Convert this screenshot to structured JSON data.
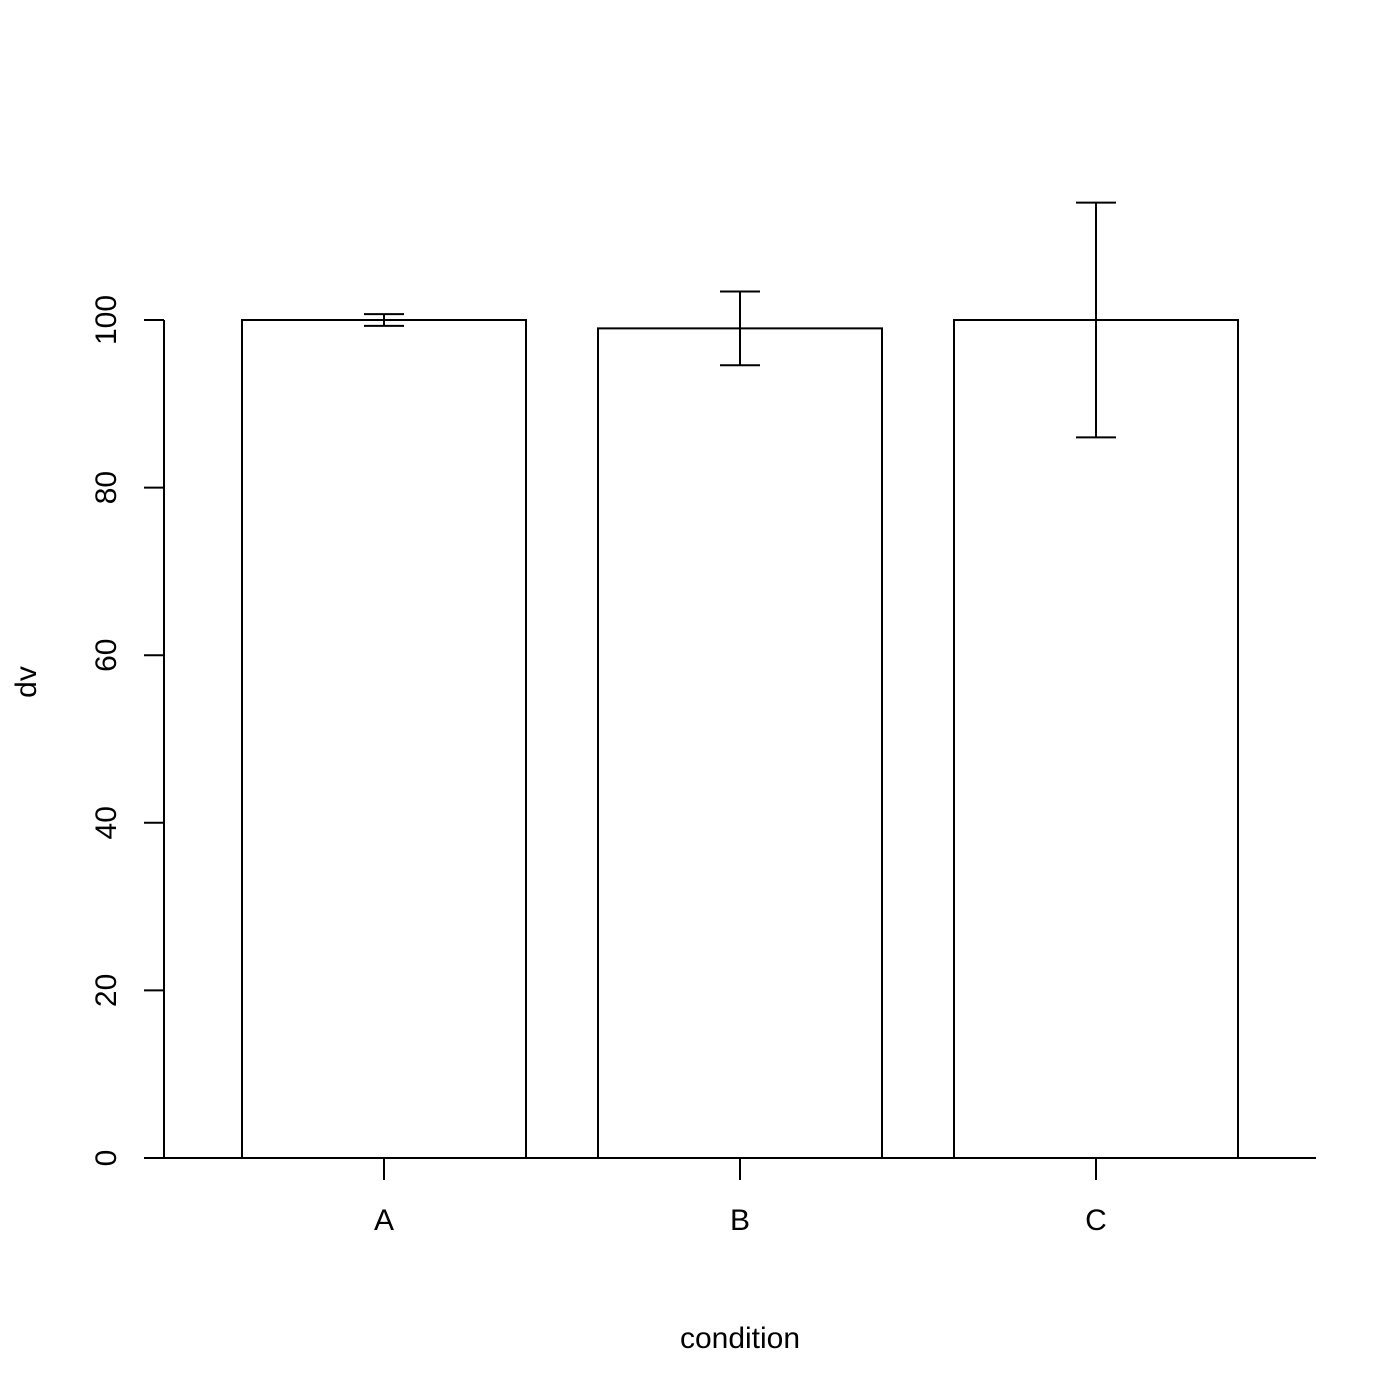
{
  "chart_data": {
    "type": "bar",
    "title": "",
    "xlabel": "condition",
    "ylabel": "dv",
    "categories": [
      "A",
      "B",
      "C"
    ],
    "values": [
      100,
      99,
      100
    ],
    "error_bars": [
      {
        "low": 99.3,
        "high": 100.7
      },
      {
        "low": 94.6,
        "high": 103.4
      },
      {
        "low": 86,
        "high": 114
      }
    ],
    "ylim": [
      0,
      114
    ],
    "yticks": [
      0,
      20,
      40,
      60,
      80,
      100
    ],
    "grid": false,
    "legend": "none",
    "bar_fill": "#ffffff",
    "stroke_color": "#000000"
  }
}
